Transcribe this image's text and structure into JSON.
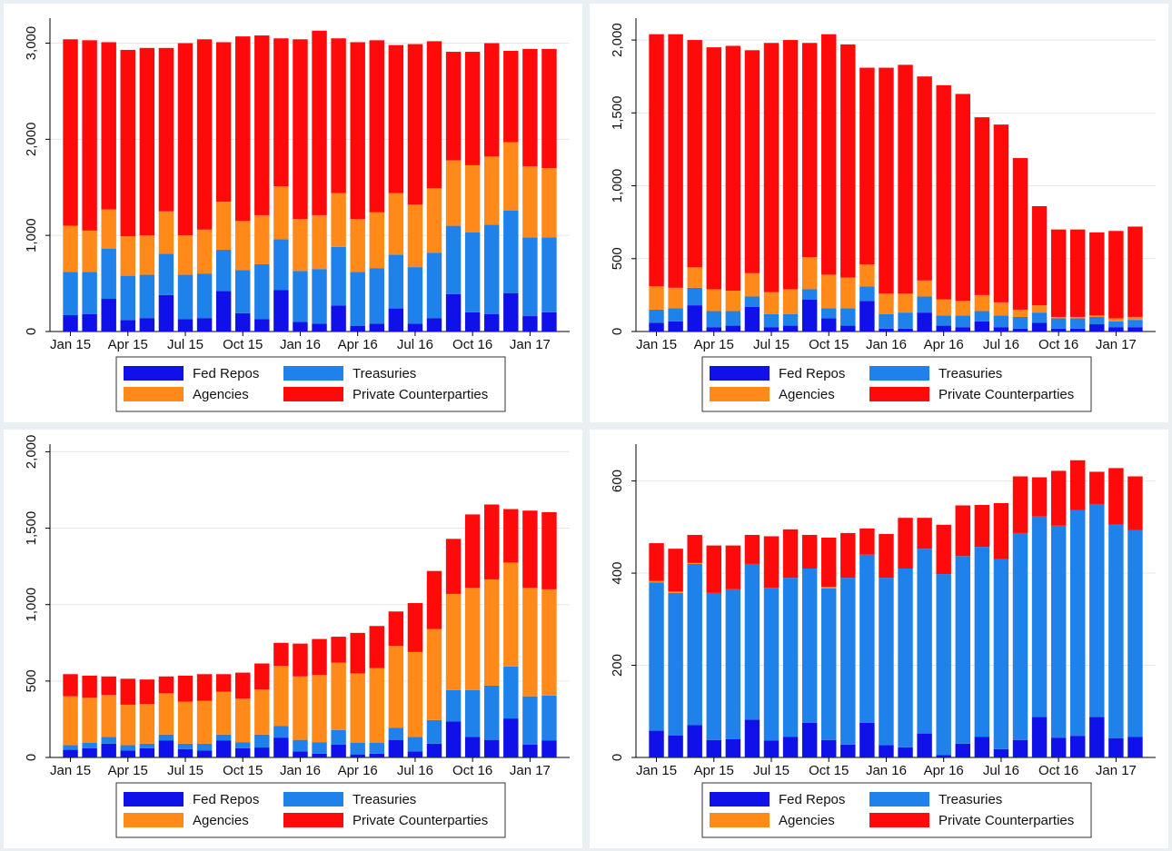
{
  "chart_data": [
    {
      "type": "bar",
      "stacked": true,
      "legend": "bottom",
      "grid": true,
      "categories": [
        "Jan 15",
        null,
        null,
        "Apr 15",
        null,
        null,
        "Jul 15",
        null,
        null,
        "Oct 15",
        null,
        null,
        "Jan 16",
        null,
        null,
        "Apr 16",
        null,
        null,
        "Jul 16",
        null,
        null,
        "Oct 16",
        null,
        null,
        "Jan 17",
        null
      ],
      "series": [
        {
          "name": "Fed Repos",
          "color": "#1010e8",
          "values": [
            170,
            180,
            340,
            120,
            140,
            380,
            130,
            140,
            420,
            190,
            130,
            430,
            100,
            80,
            270,
            60,
            80,
            240,
            80,
            140,
            390,
            200,
            180,
            400,
            160,
            200
          ]
        },
        {
          "name": "Treasuries",
          "color": "#1f82ea",
          "values": [
            450,
            440,
            520,
            460,
            450,
            430,
            460,
            460,
            430,
            450,
            570,
            530,
            530,
            570,
            610,
            560,
            580,
            560,
            590,
            680,
            710,
            830,
            930,
            860,
            820,
            780
          ]
        },
        {
          "name": "Agencies",
          "color": "#ff8a1a",
          "values": [
            480,
            430,
            410,
            410,
            410,
            440,
            410,
            460,
            500,
            510,
            510,
            550,
            540,
            560,
            560,
            550,
            580,
            640,
            650,
            670,
            680,
            700,
            710,
            710,
            740,
            720
          ]
        },
        {
          "name": "Private Counterparties",
          "color": "#ff0a0a",
          "values": [
            1940,
            1980,
            1740,
            1940,
            1950,
            1700,
            2000,
            1980,
            1660,
            1920,
            1870,
            1540,
            1870,
            1920,
            1610,
            1840,
            1790,
            1540,
            1670,
            1530,
            1130,
            1180,
            1180,
            950,
            1220,
            1240
          ]
        }
      ],
      "ylim": [
        0,
        3260
      ],
      "yticks": [
        0,
        {
          "value": 1000,
          "label": "1,000"
        },
        {
          "value": 2000,
          "label": "2,000"
        },
        {
          "value": 3000,
          "label": "3,000"
        }
      ]
    },
    {
      "type": "bar",
      "stacked": true,
      "legend": "bottom",
      "grid": true,
      "categories": [
        "Jan 15",
        null,
        null,
        "Apr 15",
        null,
        null,
        "Jul 15",
        null,
        null,
        "Oct 15",
        null,
        null,
        "Jan 16",
        null,
        null,
        "Apr 16",
        null,
        null,
        "Jul 16",
        null,
        null,
        "Oct 16",
        null,
        null,
        "Jan 17",
        null
      ],
      "series": [
        {
          "name": "Fed Repos",
          "color": "#1010e8",
          "values": [
            60,
            70,
            180,
            30,
            40,
            170,
            30,
            40,
            220,
            90,
            40,
            210,
            20,
            20,
            130,
            40,
            30,
            70,
            30,
            20,
            60,
            20,
            20,
            50,
            30,
            30
          ]
        },
        {
          "name": "Treasuries",
          "color": "#1f82ea",
          "values": [
            90,
            90,
            120,
            110,
            100,
            70,
            90,
            80,
            70,
            70,
            120,
            100,
            100,
            110,
            110,
            70,
            80,
            70,
            80,
            80,
            70,
            70,
            70,
            50,
            40,
            50
          ]
        },
        {
          "name": "Agencies",
          "color": "#ff8a1a",
          "values": [
            160,
            140,
            140,
            150,
            140,
            160,
            150,
            170,
            220,
            230,
            210,
            150,
            140,
            130,
            110,
            110,
            100,
            110,
            90,
            50,
            50,
            10,
            10,
            10,
            20,
            20
          ]
        },
        {
          "name": "Private Counterparties",
          "color": "#ff0a0a",
          "values": [
            1730,
            1740,
            1560,
            1660,
            1680,
            1530,
            1710,
            1710,
            1470,
            1650,
            1600,
            1350,
            1550,
            1570,
            1400,
            1470,
            1420,
            1220,
            1220,
            1040,
            680,
            600,
            600,
            570,
            600,
            620
          ]
        }
      ],
      "ylim": [
        0,
        2150
      ],
      "yticks": [
        0,
        500,
        {
          "value": 1000,
          "label": "1,000"
        },
        {
          "value": 1500,
          "label": "1,500"
        },
        {
          "value": 2000,
          "label": "2,000"
        }
      ]
    },
    {
      "type": "bar",
      "stacked": true,
      "legend": "bottom",
      "grid": true,
      "categories": [
        "Jan 15",
        null,
        null,
        "Apr 15",
        null,
        null,
        "Jul 15",
        null,
        null,
        "Oct 15",
        null,
        null,
        "Jan 16",
        null,
        null,
        "Apr 16",
        null,
        null,
        "Jul 16",
        null,
        null,
        "Oct 16",
        null,
        null,
        "Jan 17",
        null
      ],
      "series": [
        {
          "name": "Fed Repos",
          "color": "#1010e8",
          "values": [
            50,
            60,
            90,
            45,
            60,
            110,
            55,
            45,
            110,
            60,
            65,
            130,
            40,
            25,
            85,
            20,
            25,
            115,
            40,
            90,
            235,
            135,
            115,
            255,
            85,
            110
          ]
        },
        {
          "name": "Treasuries",
          "color": "#1f82ea",
          "values": [
            30,
            35,
            45,
            35,
            30,
            40,
            35,
            45,
            40,
            40,
            85,
            75,
            75,
            75,
            95,
            75,
            70,
            80,
            95,
            155,
            205,
            305,
            355,
            340,
            315,
            295
          ]
        },
        {
          "name": "Agencies",
          "color": "#ff8a1a",
          "values": [
            320,
            295,
            275,
            265,
            260,
            270,
            275,
            280,
            280,
            285,
            295,
            395,
            415,
            440,
            440,
            455,
            490,
            535,
            555,
            595,
            630,
            670,
            695,
            680,
            710,
            695
          ]
        },
        {
          "name": "Private Counterparties",
          "color": "#ff0a0a",
          "values": [
            145,
            145,
            120,
            170,
            160,
            110,
            170,
            175,
            115,
            170,
            170,
            150,
            215,
            235,
            170,
            265,
            275,
            225,
            320,
            380,
            360,
            480,
            490,
            350,
            505,
            505
          ]
        }
      ],
      "ylim": [
        0,
        2050
      ],
      "yticks": [
        0,
        500,
        {
          "value": 1000,
          "label": "1,000"
        },
        {
          "value": 1500,
          "label": "1,500"
        },
        {
          "value": 2000,
          "label": "2,000"
        }
      ]
    },
    {
      "type": "bar",
      "stacked": true,
      "legend": "bottom",
      "grid": true,
      "categories": [
        "Jan 15",
        null,
        null,
        "Apr 15",
        null,
        null,
        "Jul 15",
        null,
        null,
        "Oct 15",
        null,
        null,
        "Jan 16",
        null,
        null,
        "Apr 16",
        null,
        null,
        "Jul 16",
        null,
        null,
        "Oct 16",
        null,
        null,
        "Jan 17",
        null
      ],
      "series": [
        {
          "name": "Fed Repos",
          "color": "#1010e8",
          "values": [
            58,
            48,
            70,
            38,
            40,
            82,
            37,
            45,
            75,
            38,
            28,
            75,
            27,
            22,
            52,
            5,
            30,
            45,
            18,
            38,
            88,
            43,
            47,
            88,
            42,
            45
          ]
        },
        {
          "name": "Treasuries",
          "color": "#1f82ea",
          "values": [
            322,
            309,
            350,
            319,
            325,
            338,
            331,
            345,
            335,
            329,
            362,
            365,
            363,
            388,
            401,
            393,
            407,
            412,
            412,
            449,
            435,
            460,
            490,
            462,
            463,
            448
          ]
        },
        {
          "name": "Agencies",
          "color": "#ff8a1a",
          "values": [
            3,
            3,
            2,
            0,
            0,
            0,
            0,
            0,
            0,
            3,
            0,
            0,
            0,
            0,
            0,
            0,
            0,
            0,
            0,
            0,
            0,
            0,
            0,
            0,
            0,
            0
          ]
        },
        {
          "name": "Private Counterparties",
          "color": "#ff0a0a",
          "values": [
            82,
            93,
            61,
            103,
            95,
            63,
            112,
            105,
            73,
            107,
            97,
            57,
            95,
            110,
            67,
            107,
            110,
            91,
            122,
            123,
            85,
            119,
            108,
            70,
            123,
            117
          ]
        }
      ],
      "ylim": [
        0,
        680
      ],
      "yticks": [
        0,
        200,
        400,
        600
      ]
    }
  ]
}
